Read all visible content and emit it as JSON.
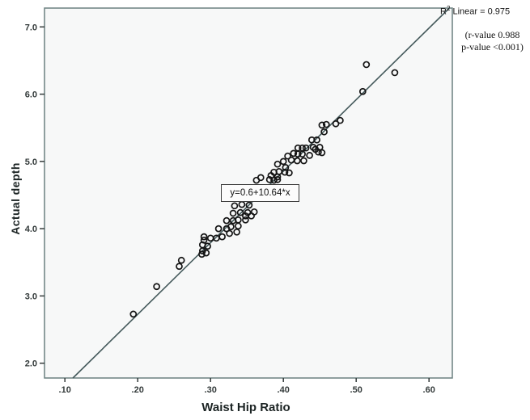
{
  "colors": {
    "plot_bg": "#f7f8f8",
    "frame": "#6b8080",
    "line": "#44595b",
    "marker": "#141414",
    "tick": "#343b3b",
    "text": "#1c2424"
  },
  "chart_data": {
    "type": "scatter",
    "title": "",
    "xlabel": "Waist Hip Ratio",
    "ylabel": "Actual depth",
    "xlim": [
      0.072,
      0.632
    ],
    "ylim": [
      1.78,
      7.28
    ],
    "grid": false,
    "legend": null,
    "x_ticks": {
      "values": [
        0.1,
        0.2,
        0.3,
        0.4,
        0.5,
        0.6
      ],
      "labels": [
        ".10",
        ".20",
        ".30",
        ".40",
        ".50",
        ".60"
      ]
    },
    "y_ticks": {
      "values": [
        2.0,
        3.0,
        4.0,
        5.0,
        6.0,
        7.0
      ],
      "labels": [
        "2.0",
        "3.0",
        "4.0",
        "5.0",
        "6.0",
        "7.0"
      ]
    },
    "regression_line": {
      "intercept": 0.6,
      "slope": 10.64,
      "x1": 0.111,
      "y1": 1.78,
      "x2": 0.628,
      "y2": 7.28
    },
    "marker": {
      "shape": "open-circle",
      "radius_px": 3.5
    },
    "points": [
      [
        0.194,
        2.73
      ],
      [
        0.226,
        3.14
      ],
      [
        0.257,
        3.44
      ],
      [
        0.26,
        3.53
      ],
      [
        0.288,
        3.62
      ],
      [
        0.289,
        3.67
      ],
      [
        0.294,
        3.64
      ],
      [
        0.289,
        3.76
      ],
      [
        0.296,
        3.74
      ],
      [
        0.291,
        3.83
      ],
      [
        0.291,
        3.88
      ],
      [
        0.3,
        3.86
      ],
      [
        0.308,
        3.86
      ],
      [
        0.316,
        3.88
      ],
      [
        0.311,
        4.0
      ],
      [
        0.322,
        4.0
      ],
      [
        0.326,
        3.93
      ],
      [
        0.336,
        3.95
      ],
      [
        0.322,
        4.12
      ],
      [
        0.331,
        4.12
      ],
      [
        0.338,
        4.13
      ],
      [
        0.348,
        4.13
      ],
      [
        0.328,
        4.03
      ],
      [
        0.338,
        4.04
      ],
      [
        0.331,
        4.23
      ],
      [
        0.341,
        4.24
      ],
      [
        0.351,
        4.24
      ],
      [
        0.36,
        4.25
      ],
      [
        0.348,
        4.19
      ],
      [
        0.356,
        4.19
      ],
      [
        0.333,
        4.34
      ],
      [
        0.343,
        4.36
      ],
      [
        0.353,
        4.35
      ],
      [
        0.363,
        4.72
      ],
      [
        0.369,
        4.76
      ],
      [
        0.381,
        4.73
      ],
      [
        0.387,
        4.72
      ],
      [
        0.392,
        4.73
      ],
      [
        0.383,
        4.79
      ],
      [
        0.392,
        4.77
      ],
      [
        0.387,
        4.84
      ],
      [
        0.394,
        4.85
      ],
      [
        0.402,
        4.84
      ],
      [
        0.408,
        4.83
      ],
      [
        0.403,
        4.91
      ],
      [
        0.392,
        4.96
      ],
      [
        0.4,
        5.0
      ],
      [
        0.411,
        5.02
      ],
      [
        0.419,
        5.01
      ],
      [
        0.428,
        5.01
      ],
      [
        0.406,
        5.08
      ],
      [
        0.414,
        5.12
      ],
      [
        0.42,
        5.11
      ],
      [
        0.426,
        5.11
      ],
      [
        0.436,
        5.09
      ],
      [
        0.42,
        5.2
      ],
      [
        0.426,
        5.2
      ],
      [
        0.431,
        5.2
      ],
      [
        0.441,
        5.21
      ],
      [
        0.444,
        5.18
      ],
      [
        0.45,
        5.21
      ],
      [
        0.439,
        5.32
      ],
      [
        0.446,
        5.32
      ],
      [
        0.448,
        5.14
      ],
      [
        0.453,
        5.13
      ],
      [
        0.453,
        5.54
      ],
      [
        0.459,
        5.55
      ],
      [
        0.456,
        5.44
      ],
      [
        0.472,
        5.56
      ],
      [
        0.478,
        5.61
      ],
      [
        0.509,
        6.04
      ],
      [
        0.514,
        6.44
      ],
      [
        0.553,
        6.32
      ]
    ],
    "annotations": {
      "equation": "y=0.6+10.64*x",
      "r_squared": {
        "prefix": "R",
        "sup": "2",
        "suffix": " Linear = 0.975"
      },
      "stats_line1": "(r-value 0.988",
      "stats_line2": "p-value <0.001)"
    }
  }
}
